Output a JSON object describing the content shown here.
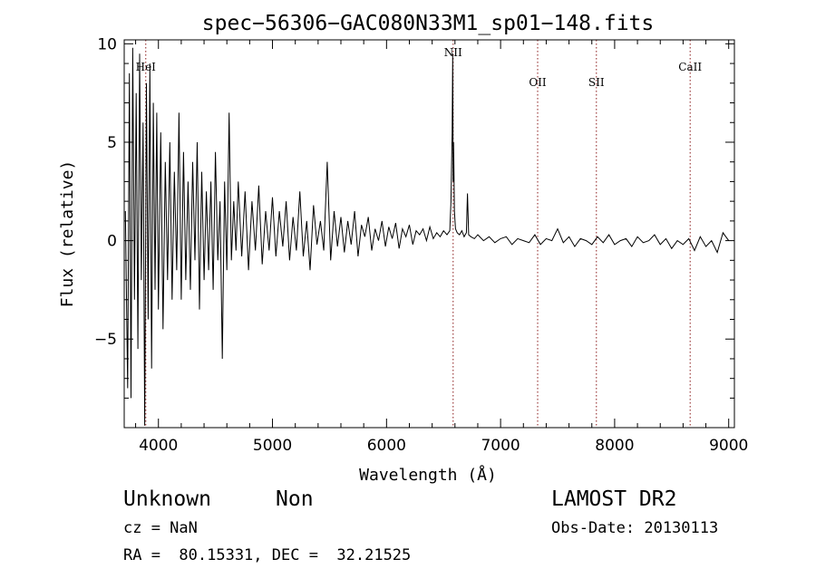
{
  "chart_data": {
    "type": "line",
    "title": "spec−56306−GAC080N33M1_sp01−148.fits",
    "xlabel": "Wavelength (Å)",
    "ylabel": "Flux (relative)",
    "xlim": [
      3700,
      9050
    ],
    "ylim": [
      -9.5,
      10.2
    ],
    "xticks": [
      4000,
      5000,
      6000,
      7000,
      8000,
      9000
    ],
    "yticks": [
      -5,
      0,
      5,
      10
    ],
    "ytick_labels": [
      "−5",
      "0",
      "5",
      "10"
    ],
    "grid": false,
    "line_color": "#000000",
    "marker_color": "#8b1a1a",
    "lines": [
      {
        "label": "HeI",
        "x": 3889
      },
      {
        "label": "NII",
        "x": 6584
      },
      {
        "label": "OII",
        "x": 7325
      },
      {
        "label": "SII",
        "x": 7840
      },
      {
        "label": "CaII",
        "x": 8662
      }
    ],
    "series": [
      {
        "x": [
          3710,
          3730,
          3745,
          3760,
          3775,
          3790,
          3805,
          3820,
          3835,
          3850,
          3865,
          3880,
          3895,
          3910,
          3925,
          3940,
          3955,
          3970,
          3985,
          4000,
          4020,
          4040,
          4060,
          4080,
          4100,
          4120,
          4140,
          4160,
          4180,
          4200,
          4220,
          4240,
          4260,
          4280,
          4300,
          4320,
          4340,
          4360,
          4380,
          4400,
          4420,
          4440,
          4460,
          4480,
          4500,
          4520,
          4540,
          4560,
          4580,
          4600,
          4620,
          4640,
          4660,
          4680,
          4700,
          4730,
          4760,
          4790,
          4820,
          4850,
          4880,
          4910,
          4940,
          4970,
          5000,
          5030,
          5060,
          5090,
          5120,
          5150,
          5180,
          5210,
          5240,
          5270,
          5300,
          5330,
          5360,
          5390,
          5420,
          5450,
          5480,
          5510,
          5540,
          5570,
          5600,
          5630,
          5660,
          5690,
          5720,
          5750,
          5780,
          5810,
          5840,
          5870,
          5900,
          5930,
          5960,
          5990,
          6020,
          6050,
          6080,
          6110,
          6140,
          6170,
          6200,
          6230,
          6260,
          6290,
          6320,
          6350,
          6380,
          6410,
          6440,
          6470,
          6500,
          6530,
          6555,
          6565,
          6575,
          6580,
          6584,
          6588,
          6595,
          6605,
          6620,
          6640,
          6660,
          6680,
          6700,
          6710,
          6720,
          6740,
          6770,
          6800,
          6850,
          6900,
          6950,
          7000,
          7050,
          7100,
          7150,
          7200,
          7250,
          7300,
          7350,
          7400,
          7450,
          7500,
          7550,
          7600,
          7650,
          7700,
          7750,
          7800,
          7850,
          7900,
          7950,
          8000,
          8050,
          8100,
          8150,
          8200,
          8250,
          8300,
          8350,
          8400,
          8450,
          8500,
          8550,
          8600,
          8650,
          8700,
          8750,
          8800,
          8850,
          8900,
          8950,
          9000
        ],
        "y": [
          1.5,
          -7.5,
          8.5,
          -8.0,
          9.8,
          -3.0,
          7.5,
          -5.5,
          9.5,
          -2.0,
          6.0,
          -9.4,
          8.0,
          -4.0,
          9.0,
          -6.5,
          7.0,
          -2.5,
          6.5,
          -3.5,
          5.5,
          -4.5,
          4.0,
          -2.0,
          5.0,
          -3.0,
          3.5,
          -1.5,
          6.5,
          -3.0,
          4.5,
          -2.0,
          3.0,
          -2.5,
          4.0,
          -1.0,
          5.0,
          -3.5,
          3.5,
          -2.0,
          2.5,
          -1.5,
          3.0,
          -2.5,
          4.5,
          -1.0,
          2.0,
          -6.0,
          3.0,
          -1.5,
          6.5,
          -1.0,
          2.0,
          -0.5,
          3.0,
          -0.8,
          2.5,
          -1.5,
          2.0,
          -0.5,
          2.8,
          -1.2,
          1.5,
          -0.5,
          2.2,
          -0.8,
          1.5,
          -0.3,
          2.0,
          -1.0,
          1.2,
          -0.5,
          2.5,
          -0.8,
          1.0,
          -1.5,
          1.8,
          -0.2,
          1.0,
          -0.5,
          4.0,
          -1.0,
          1.5,
          -0.3,
          1.2,
          -0.6,
          1.0,
          -0.2,
          1.5,
          -0.8,
          0.8,
          0.2,
          1.2,
          -0.5,
          0.6,
          0.0,
          1.0,
          -0.3,
          0.7,
          0.1,
          0.9,
          -0.4,
          0.6,
          0.2,
          0.8,
          -0.2,
          0.5,
          0.3,
          0.6,
          0.0,
          0.7,
          0.1,
          0.4,
          0.2,
          0.5,
          0.3,
          0.5,
          2.0,
          5.5,
          9.5,
          3.0,
          5.0,
          1.5,
          0.6,
          0.4,
          0.3,
          0.5,
          0.2,
          0.4,
          2.4,
          0.3,
          0.2,
          0.1,
          0.3,
          0.0,
          0.2,
          -0.1,
          0.1,
          0.2,
          -0.2,
          0.1,
          0.0,
          -0.1,
          0.3,
          -0.2,
          0.1,
          0.0,
          0.6,
          -0.1,
          0.2,
          -0.3,
          0.1,
          0.0,
          -0.2,
          0.2,
          -0.1,
          0.3,
          -0.2,
          0.0,
          0.1,
          -0.3,
          0.2,
          -0.1,
          0.0,
          0.3,
          -0.2,
          0.1,
          -0.4,
          0.0,
          -0.2,
          0.1,
          -0.5,
          0.2,
          -0.3,
          0.0,
          -0.6,
          0.4,
          0.0
        ]
      }
    ]
  },
  "info": {
    "object_class": "Unknown",
    "object_subclass": "Non",
    "survey": "LAMOST DR2",
    "cz": "cz = NaN",
    "obs_date": "Obs-Date: 20130113",
    "coords": "RA =  80.15331, DEC =  32.21525"
  }
}
